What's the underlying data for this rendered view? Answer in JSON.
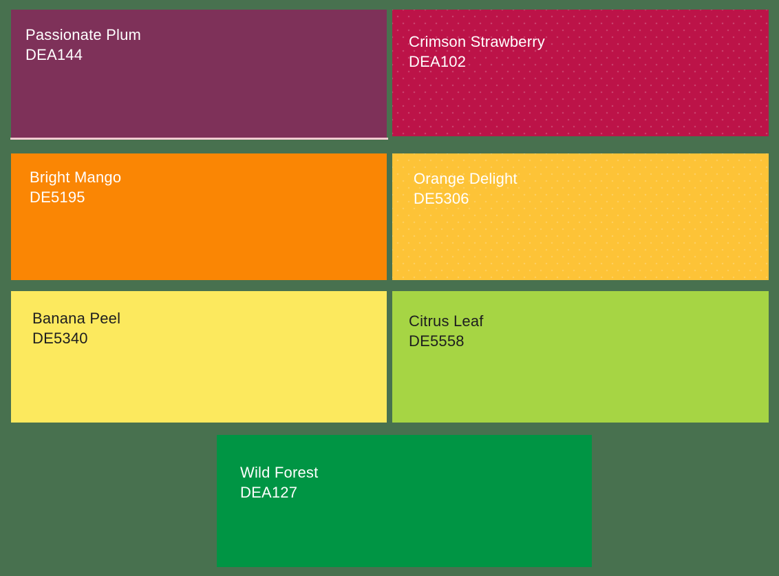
{
  "background_color": "#48714F",
  "selection_underline_color": "#F2CBD1",
  "swatches": [
    {
      "name": "Passionate Plum",
      "code": "DEA144",
      "color": "#7E3159",
      "text_color": "#FFFFFF",
      "selected": true,
      "textured": false
    },
    {
      "name": "Crimson Strawberry",
      "code": "DEA102",
      "color": "#BC1348",
      "text_color": "#FFFFFF",
      "selected": false,
      "textured": true
    },
    {
      "name": "Bright Mango",
      "code": "DE5195",
      "color": "#FA8604",
      "text_color": "#FFFFFF",
      "selected": false,
      "textured": false
    },
    {
      "name": "Orange Delight",
      "code": "DE5306",
      "color": "#FDC337",
      "text_color": "#FFFFFF",
      "selected": false,
      "textured": true
    },
    {
      "name": "Banana Peel",
      "code": "DE5340",
      "color": "#FCE95E",
      "text_color": "#1D1D1F",
      "selected": false,
      "textured": false
    },
    {
      "name": "Citrus Leaf",
      "code": "DE5558",
      "color": "#A6D544",
      "text_color": "#1D1D1F",
      "selected": false,
      "textured": false
    },
    {
      "name": "Wild Forest",
      "code": "DEA127",
      "color": "#009544",
      "text_color": "#FFFFFF",
      "selected": false,
      "textured": false
    }
  ]
}
